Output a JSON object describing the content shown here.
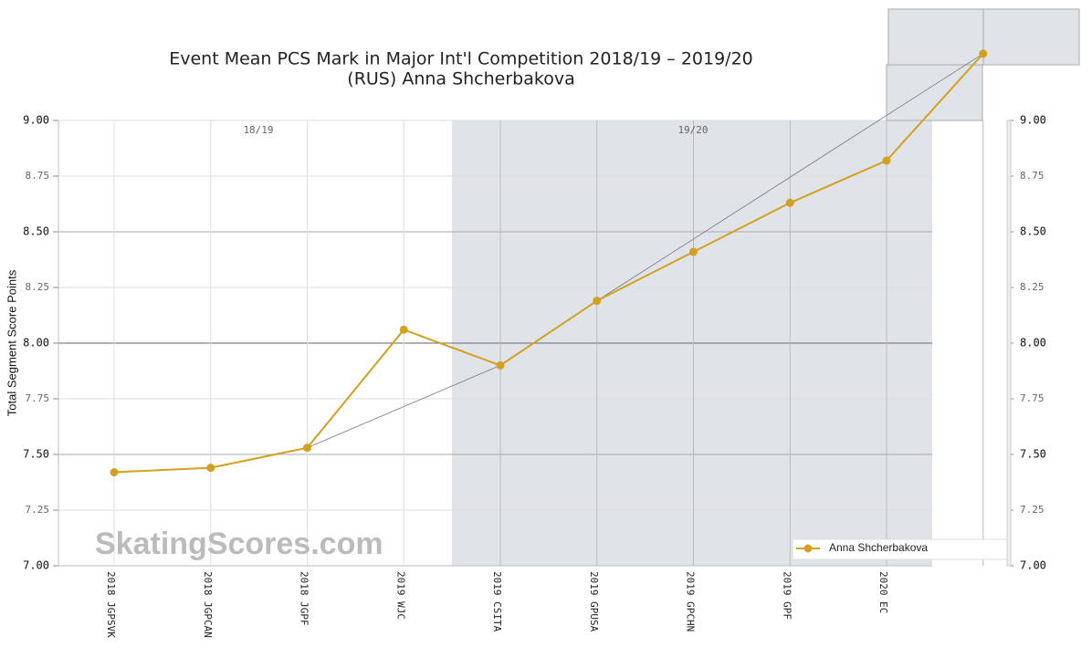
{
  "chart_data": {
    "type": "line",
    "title": "Event Mean PCS Mark in Major Int'l Competition 2018/19 – 2019/20",
    "subtitle": "(RUS) Anna Shcherbakova",
    "y_label": "Total Segment Score Points",
    "watermark": "SkatingScores.com",
    "season_labels": [
      "18/19",
      "19/20"
    ],
    "categories": [
      "2018 JGPSVK",
      "2018 JGPCAN",
      "2018 JGPF",
      "2019 WJC",
      "2019 CSITA",
      "2019 GPUSA",
      "2019 GPCHN",
      "2019 GPF",
      "2020 EC",
      null
    ],
    "series": [
      {
        "name": "Anna Shcherbakova",
        "color": "#d4a020",
        "values": [
          7.42,
          7.44,
          7.53,
          8.06,
          7.9,
          8.19,
          8.41,
          8.63,
          8.82,
          9.3
        ]
      }
    ],
    "trend": {
      "color": "#777777",
      "x": [
        2,
        4,
        5,
        9
      ],
      "values": [
        7.53,
        7.9,
        8.19,
        9.3
      ]
    },
    "ylim": [
      7.0,
      9.0
    ],
    "yticks": [
      {
        "value": 7.0,
        "label": "7.00"
      },
      {
        "value": 7.25,
        "label": "7.25"
      },
      {
        "value": 7.5,
        "label": "7.50"
      },
      {
        "value": 7.75,
        "label": "7.75"
      },
      {
        "value": 8.0,
        "label": "8.00"
      },
      {
        "value": 8.25,
        "label": "8.25"
      },
      {
        "value": 8.5,
        "label": "8.50"
      },
      {
        "value": 8.75,
        "label": "8.75"
      },
      {
        "value": 9.0,
        "label": "9.00"
      }
    ],
    "y2lim": [
      7.0,
      9.0
    ],
    "y2ticks": [
      {
        "value": 7.0,
        "label": "7.00"
      },
      {
        "value": 7.25,
        "label": "7.25"
      },
      {
        "value": 7.5,
        "label": "7.50"
      },
      {
        "value": 7.75,
        "label": "7.75"
      },
      {
        "value": 8.0,
        "label": "8.00"
      },
      {
        "value": 8.25,
        "label": "8.25"
      },
      {
        "value": 8.5,
        "label": "8.50"
      },
      {
        "value": 8.75,
        "label": "8.75"
      },
      {
        "value": 9.0,
        "label": "9.00"
      }
    ],
    "grid": true,
    "legend": "lower right"
  }
}
